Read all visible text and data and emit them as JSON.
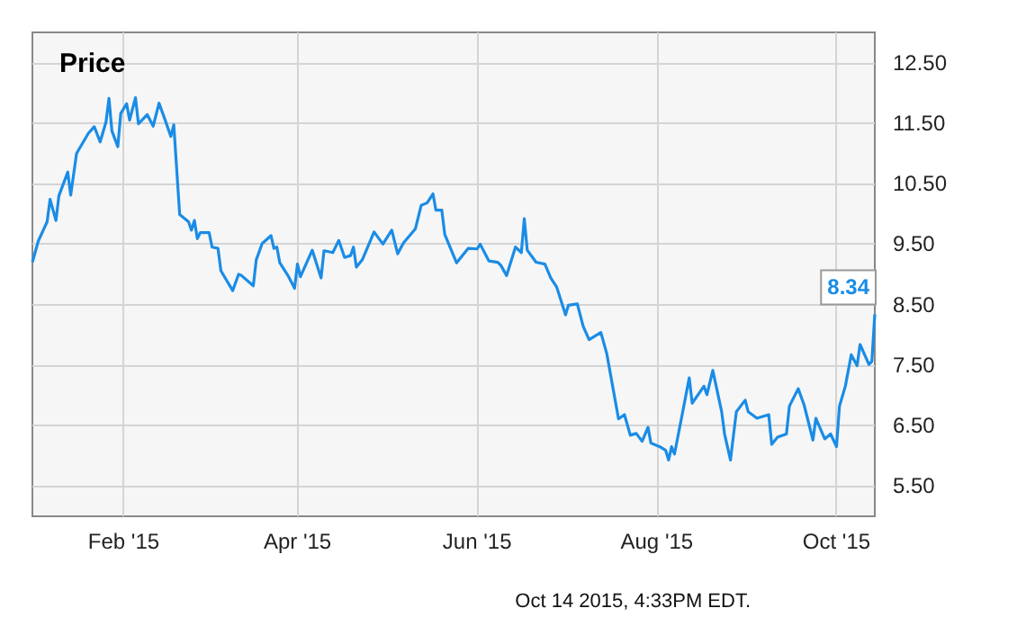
{
  "chart_data": {
    "type": "line",
    "title": "Price",
    "annotations": [
      "Oct 14 2015, 4:33PM EDT."
    ],
    "x": [
      "2015-01-01",
      "2015-01-03",
      "2015-01-06",
      "2015-01-07",
      "2015-01-09",
      "2015-01-10",
      "2015-01-13",
      "2015-01-14",
      "2015-01-16",
      "2015-01-20",
      "2015-01-22",
      "2015-01-24",
      "2015-01-26",
      "2015-01-27",
      "2015-01-28",
      "2015-01-30",
      "2015-01-31",
      "2015-02-02",
      "2015-02-03",
      "2015-02-05",
      "2015-02-06",
      "2015-02-09",
      "2015-02-11",
      "2015-02-13",
      "2015-02-15",
      "2015-02-17",
      "2015-02-18",
      "2015-02-20",
      "2015-02-23",
      "2015-02-24",
      "2015-02-25",
      "2015-02-26",
      "2015-02-27",
      "2015-03-02",
      "2015-03-03",
      "2015-03-05",
      "2015-03-06",
      "2015-03-10",
      "2015-03-12",
      "2015-03-13",
      "2015-03-17",
      "2015-03-18",
      "2015-03-20",
      "2015-03-23",
      "2015-03-24",
      "2015-03-25",
      "2015-03-26",
      "2015-03-29",
      "2015-03-31",
      "2015-04-01",
      "2015-04-02",
      "2015-04-06",
      "2015-04-09",
      "2015-04-10",
      "2015-04-13",
      "2015-04-15",
      "2015-04-17",
      "2015-04-19",
      "2015-04-20",
      "2015-04-21",
      "2015-04-23",
      "2015-04-27",
      "2015-04-30",
      "2015-05-03",
      "2015-05-05",
      "2015-05-07",
      "2015-05-11",
      "2015-05-13",
      "2015-05-15",
      "2015-05-17",
      "2015-05-18",
      "2015-05-20",
      "2015-05-21",
      "2015-05-25",
      "2015-05-29",
      "2015-06-01",
      "2015-06-02",
      "2015-06-05",
      "2015-06-08",
      "2015-06-09",
      "2015-06-11",
      "2015-06-14",
      "2015-06-16",
      "2015-06-17",
      "2015-06-18",
      "2015-06-21",
      "2015-06-24",
      "2015-06-26",
      "2015-06-28",
      "2015-07-01",
      "2015-07-02",
      "2015-07-05",
      "2015-07-07",
      "2015-07-09",
      "2015-07-13",
      "2015-07-15",
      "2015-07-19",
      "2015-07-21",
      "2015-07-23",
      "2015-07-25",
      "2015-07-27",
      "2015-07-29",
      "2015-07-30",
      "2015-08-02",
      "2015-08-04",
      "2015-08-05",
      "2015-08-06",
      "2015-08-07",
      "2015-08-10",
      "2015-08-12",
      "2015-08-13",
      "2015-08-17",
      "2015-08-18",
      "2015-08-20",
      "2015-08-23",
      "2015-08-24",
      "2015-08-26",
      "2015-08-28",
      "2015-08-31",
      "2015-09-01",
      "2015-09-04",
      "2015-09-08",
      "2015-09-09",
      "2015-09-11",
      "2015-09-14",
      "2015-09-15",
      "2015-09-18",
      "2015-09-20",
      "2015-09-23",
      "2015-09-24",
      "2015-09-27",
      "2015-09-29",
      "2015-10-01",
      "2015-10-02",
      "2015-10-04",
      "2015-10-06",
      "2015-10-08",
      "2015-10-09",
      "2015-10-12",
      "2015-10-13",
      "2015-10-14"
    ],
    "values": [
      9.2,
      9.55,
      9.87,
      10.24,
      9.89,
      10.3,
      10.69,
      10.31,
      11.0,
      11.33,
      11.44,
      11.19,
      11.52,
      11.91,
      11.37,
      11.11,
      11.66,
      11.82,
      11.55,
      11.92,
      11.49,
      11.64,
      11.45,
      11.83,
      11.56,
      11.28,
      11.47,
      9.99,
      9.87,
      9.73,
      9.89,
      9.59,
      9.69,
      9.69,
      9.45,
      9.43,
      9.06,
      8.73,
      9.0,
      8.98,
      8.81,
      9.24,
      9.51,
      9.64,
      9.43,
      9.45,
      9.19,
      8.96,
      8.77,
      9.17,
      8.96,
      9.4,
      8.94,
      9.39,
      9.36,
      9.56,
      9.28,
      9.31,
      9.45,
      9.12,
      9.24,
      9.7,
      9.5,
      9.73,
      9.34,
      9.52,
      9.75,
      10.14,
      10.18,
      10.33,
      10.06,
      10.06,
      9.66,
      9.19,
      9.43,
      9.42,
      9.5,
      9.22,
      9.2,
      9.15,
      8.98,
      9.45,
      9.36,
      9.92,
      9.4,
      9.2,
      9.17,
      8.94,
      8.79,
      8.33,
      8.49,
      8.51,
      8.14,
      7.92,
      8.04,
      7.69,
      6.61,
      6.68,
      6.34,
      6.37,
      6.24,
      6.47,
      6.21,
      6.15,
      6.09,
      5.93,
      6.15,
      6.03,
      6.78,
      7.29,
      6.87,
      7.15,
      7.01,
      7.41,
      6.73,
      6.36,
      5.93,
      6.73,
      6.92,
      6.73,
      6.62,
      6.68,
      6.19,
      6.31,
      6.36,
      6.82,
      7.11,
      6.84,
      6.26,
      6.62,
      6.28,
      6.36,
      6.15,
      6.82,
      7.15,
      7.67,
      7.49,
      7.84,
      7.51,
      7.56,
      8.34
    ],
    "value_labels": [
      null,
      null,
      null,
      null,
      null,
      null,
      null,
      null,
      null,
      null,
      null,
      null,
      null,
      null,
      null,
      null,
      null,
      null,
      null,
      null,
      null,
      null,
      null,
      null,
      null,
      null,
      null,
      null,
      null,
      null,
      null,
      null,
      null,
      null,
      null,
      null,
      null,
      null,
      null,
      null,
      null,
      null,
      null,
      null,
      null,
      null,
      null,
      null,
      null,
      null,
      null,
      null,
      null,
      null,
      null,
      null,
      null,
      null,
      null,
      null,
      null,
      null,
      null,
      null,
      null,
      null,
      null,
      null,
      null,
      null,
      null,
      null,
      null,
      null,
      null,
      null,
      null,
      null,
      null,
      null,
      null,
      null,
      null,
      null,
      null,
      null,
      null,
      null,
      null,
      null,
      null,
      null,
      null,
      null,
      null,
      null,
      null,
      null,
      null,
      null,
      null,
      null,
      null,
      null,
      null,
      null,
      null,
      null,
      null,
      null,
      null,
      null,
      null,
      null,
      null,
      null,
      null,
      null,
      null,
      null,
      null,
      null,
      null,
      null,
      null,
      null,
      null,
      null,
      null,
      null,
      null,
      null,
      null,
      null,
      null,
      null,
      null,
      null,
      null,
      null,
      "8.34"
    ],
    "color": "#1a8ce6",
    "xlim": [
      "2015-01-01",
      "2015-10-14"
    ],
    "xticks": [
      {
        "value": "2015-02-01",
        "label": "Feb '15"
      },
      {
        "value": "2015-04-01",
        "label": "Apr '15"
      },
      {
        "value": "2015-06-01",
        "label": "Jun '15"
      },
      {
        "value": "2015-08-01",
        "label": "Aug '15"
      },
      {
        "value": "2015-10-01",
        "label": "Oct '15"
      }
    ],
    "ylim": [
      5,
      13
    ],
    "yticks": [
      {
        "value": 5.5,
        "label": "5.50"
      },
      {
        "value": 6.5,
        "label": "6.50"
      },
      {
        "value": 7.5,
        "label": "7.50"
      },
      {
        "value": 8.5,
        "label": "8.50"
      },
      {
        "value": 9.5,
        "label": "9.50"
      },
      {
        "value": 10.5,
        "label": "10.50"
      },
      {
        "value": 11.5,
        "label": "11.50"
      },
      {
        "value": 12.5,
        "label": "12.50"
      }
    ],
    "grid": true
  }
}
